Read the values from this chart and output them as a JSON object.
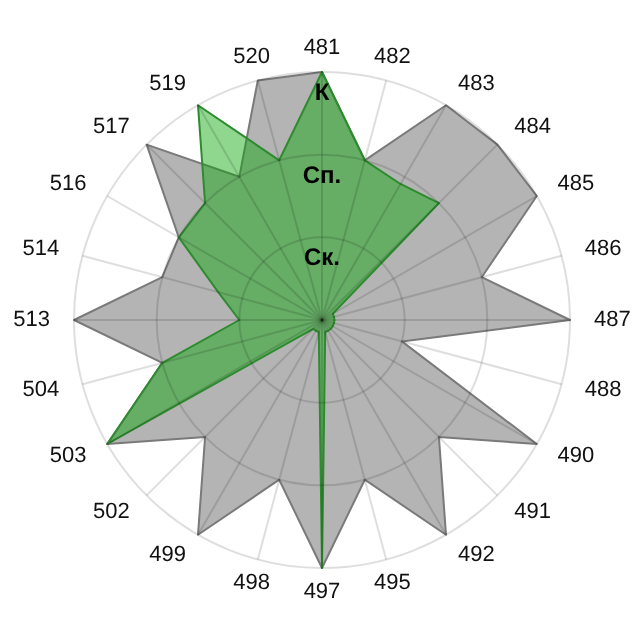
{
  "chart_data": {
    "type": "radar",
    "categories": [
      "481",
      "482",
      "483",
      "484",
      "485",
      "486",
      "487",
      "488",
      "490",
      "491",
      "492",
      "495",
      "497",
      "498",
      "499",
      "502",
      "503",
      "504",
      "513",
      "514",
      "516",
      "517",
      "519",
      "520"
    ],
    "series": [
      {
        "color": "#b4b4b4",
        "values": [
          3,
          2,
          3,
          3,
          3,
          2,
          3,
          1,
          3,
          2,
          3,
          2,
          3,
          2,
          3,
          2,
          3,
          2,
          3,
          2,
          2,
          3,
          2,
          3
        ]
      },
      {
        "color": "#07a407",
        "values": [
          3,
          2,
          1.9,
          2,
          0.15,
          0.15,
          0.15,
          0.15,
          0.15,
          0.15,
          0.15,
          0.15,
          3,
          0.15,
          0.15,
          0.15,
          3,
          2,
          1,
          1.3,
          2,
          2,
          3,
          2
        ]
      }
    ],
    "ylim": [
      0,
      3
    ],
    "yticks": [
      {
        "value": 1,
        "label": "Ск."
      },
      {
        "value": 2,
        "label": "Сп."
      },
      {
        "value": 3,
        "label": "К"
      }
    ],
    "grid": true
  }
}
